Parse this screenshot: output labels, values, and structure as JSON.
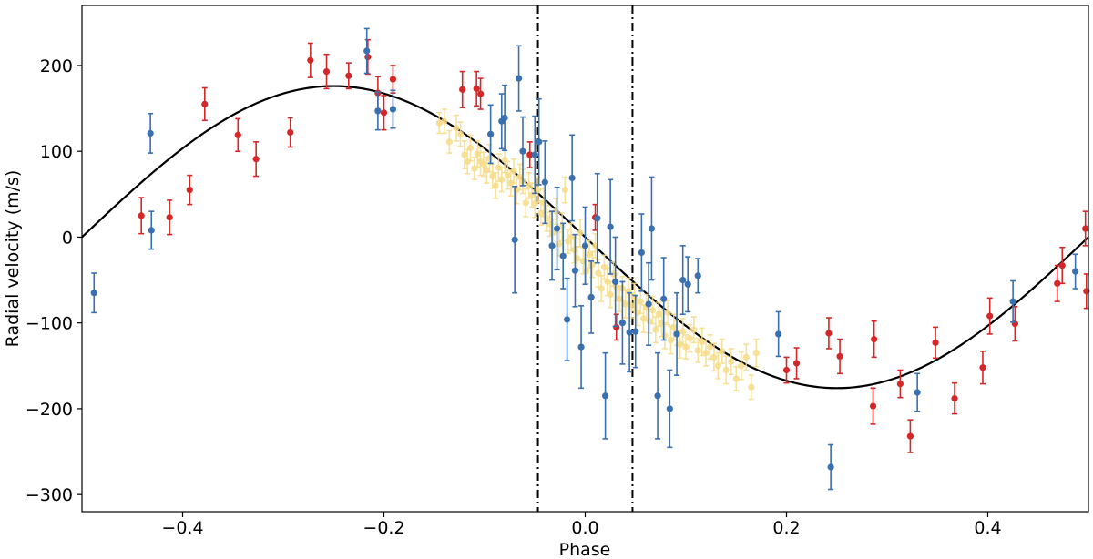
{
  "chart_data": {
    "type": "scatter",
    "title": "",
    "xlabel": "Phase",
    "ylabel": "Radial velocity (m/s)",
    "xlim": [
      -0.5,
      0.5
    ],
    "ylim": [
      -320,
      270
    ],
    "x_ticks": [
      -0.4,
      -0.2,
      0.0,
      0.2,
      0.4
    ],
    "x_tick_labels": [
      "−0.4",
      "−0.2",
      "0.0",
      "0.2",
      "0.4"
    ],
    "y_ticks": [
      -300,
      -200,
      -100,
      0,
      100,
      200
    ],
    "y_tick_labels": [
      "−300",
      "−200",
      "−100",
      "0",
      "100",
      "200"
    ],
    "vertical_lines": [
      -0.047,
      0.047
    ],
    "model": {
      "name": "Keplerian fit",
      "amplitude": 176,
      "color": "#000000"
    },
    "series": [
      {
        "name": "red",
        "color": "#d62728",
        "x": [
          -0.441,
          -0.413,
          -0.393,
          -0.378,
          -0.345,
          -0.327,
          -0.293,
          -0.273,
          -0.257,
          -0.235,
          -0.216,
          -0.206,
          -0.2,
          -0.191,
          -0.122,
          -0.108,
          -0.104,
          -0.055,
          0.01,
          0.031,
          0.2,
          0.21,
          0.242,
          0.253,
          0.286,
          0.287,
          0.313,
          0.323,
          0.348,
          0.367,
          0.395,
          0.402,
          0.427,
          0.469,
          0.474,
          0.497,
          0.498
        ],
        "y": [
          25,
          23,
          55,
          155,
          119,
          91,
          122,
          206,
          193,
          188,
          210,
          168,
          145,
          184,
          172,
          173,
          167,
          96,
          23,
          -105,
          -155,
          -147,
          -112,
          -139,
          -197,
          -119,
          -171,
          -232,
          -123,
          -188,
          -152,
          -92,
          -101,
          -54,
          -33,
          10,
          -63
        ],
        "err": [
          21,
          20,
          17,
          19,
          19,
          20,
          17,
          20,
          20,
          15,
          20,
          19,
          20,
          16,
          21,
          20,
          18,
          15,
          15,
          15,
          15,
          18,
          18,
          20,
          21,
          21,
          16,
          19,
          18,
          18,
          19,
          21,
          20,
          21,
          21,
          20,
          20
        ]
      },
      {
        "name": "blue",
        "color": "#3a6fb0",
        "x": [
          -0.488,
          -0.432,
          -0.431,
          -0.217,
          -0.206,
          -0.191,
          -0.094,
          -0.083,
          -0.08,
          -0.07,
          -0.066,
          -0.062,
          -0.05,
          -0.046,
          -0.04,
          -0.033,
          -0.028,
          -0.022,
          -0.018,
          -0.013,
          -0.01,
          -0.004,
          0.0,
          0.006,
          0.012,
          0.02,
          0.025,
          0.03,
          0.037,
          0.044,
          0.05,
          0.056,
          0.063,
          0.066,
          0.072,
          0.078,
          0.084,
          0.091,
          0.097,
          0.102,
          0.112,
          0.192,
          0.244,
          0.33,
          0.425,
          0.487
        ],
        "y": [
          -65,
          121,
          8,
          217,
          147,
          149,
          120,
          135,
          139,
          -3,
          185,
          100,
          96,
          111,
          64,
          -10,
          10,
          -22,
          -96,
          69,
          -39,
          -128,
          -10,
          -70,
          22,
          -185,
          12,
          -52,
          -100,
          -111,
          -110,
          -18,
          -78,
          10,
          -185,
          -72,
          -200,
          -113,
          -50,
          -55,
          -45,
          -113,
          -268,
          -181,
          -75,
          -40
        ],
        "err": [
          23,
          23,
          22,
          26,
          22,
          22,
          34,
          32,
          38,
          62,
          38,
          40,
          45,
          50,
          48,
          40,
          48,
          38,
          48,
          50,
          42,
          48,
          45,
          42,
          52,
          50,
          55,
          52,
          48,
          46,
          42,
          45,
          48,
          60,
          50,
          48,
          45,
          48,
          40,
          32,
          20,
          26,
          26,
          22,
          24,
          20
        ]
      },
      {
        "name": "yellow",
        "color": "#f6dc8a",
        "x": [
          -0.145,
          -0.14,
          -0.135,
          -0.128,
          -0.124,
          -0.12,
          -0.117,
          -0.114,
          -0.11,
          -0.107,
          -0.104,
          -0.101,
          -0.098,
          -0.095,
          -0.092,
          -0.089,
          -0.086,
          -0.083,
          -0.08,
          -0.077,
          -0.074,
          -0.071,
          -0.068,
          -0.065,
          -0.062,
          -0.059,
          -0.056,
          -0.053,
          -0.05,
          -0.047,
          -0.044,
          -0.041,
          -0.038,
          -0.035,
          -0.032,
          -0.029,
          -0.026,
          -0.023,
          -0.02,
          -0.017,
          -0.014,
          -0.011,
          -0.008,
          -0.005,
          -0.002,
          0.001,
          0.004,
          0.007,
          0.01,
          0.013,
          0.016,
          0.019,
          0.022,
          0.025,
          0.028,
          0.031,
          0.034,
          0.037,
          0.04,
          0.043,
          0.046,
          0.049,
          0.052,
          0.055,
          0.058,
          0.061,
          0.064,
          0.067,
          0.07,
          0.073,
          0.076,
          0.079,
          0.082,
          0.085,
          0.088,
          0.091,
          0.094,
          0.097,
          0.1,
          0.104,
          0.108,
          0.112,
          0.116,
          0.12,
          0.124,
          0.128,
          0.132,
          0.136,
          0.14,
          0.145,
          0.15,
          0.155,
          0.16,
          0.165,
          0.17
        ],
        "y": [
          133,
          135,
          111,
          127,
          120,
          96,
          88,
          104,
          80,
          97,
          88,
          85,
          78,
          92,
          71,
          60,
          81,
          67,
          90,
          72,
          63,
          77,
          55,
          70,
          65,
          40,
          60,
          49,
          39,
          55,
          28,
          40,
          22,
          15,
          5,
          30,
          -8,
          12,
          55,
          -5,
          0,
          -15,
          -25,
          5,
          -28,
          -40,
          -20,
          -32,
          -10,
          -42,
          -60,
          -35,
          -52,
          -67,
          -43,
          -58,
          -72,
          -60,
          -78,
          -63,
          -80,
          -70,
          -88,
          -75,
          -95,
          -82,
          -98,
          -85,
          -108,
          -90,
          -100,
          -115,
          -88,
          -120,
          -105,
          -112,
          -125,
          -110,
          -128,
          -118,
          -108,
          -132,
          -122,
          -135,
          -128,
          -140,
          -150,
          -133,
          -155,
          -145,
          -165,
          -150,
          -140,
          -175,
          -135
        ],
        "err": [
          12,
          14,
          13,
          15,
          14,
          16,
          14,
          15,
          13,
          15,
          16,
          14,
          15,
          16,
          14,
          15,
          16,
          14,
          15,
          16,
          15,
          14,
          16,
          15,
          14,
          16,
          15,
          14,
          16,
          15,
          14,
          16,
          15,
          14,
          16,
          15,
          14,
          16,
          15,
          14,
          16,
          15,
          14,
          16,
          15,
          14,
          16,
          15,
          14,
          16,
          15,
          14,
          16,
          15,
          14,
          16,
          15,
          14,
          16,
          15,
          14,
          16,
          15,
          14,
          16,
          15,
          14,
          16,
          15,
          14,
          16,
          15,
          14,
          16,
          15,
          14,
          16,
          15,
          14,
          16,
          15,
          14,
          16,
          15,
          14,
          16,
          15,
          14,
          16,
          15,
          14,
          16,
          15,
          14,
          16
        ]
      }
    ]
  }
}
